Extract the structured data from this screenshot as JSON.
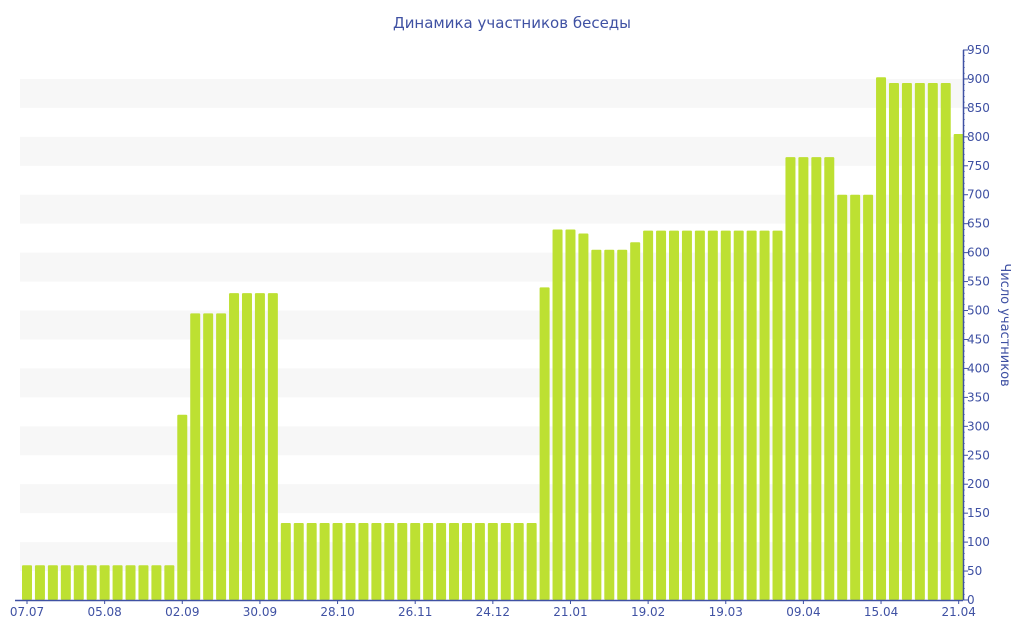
{
  "chart_data": {
    "type": "bar",
    "title": "Динамика участников беседы",
    "xlabel": "",
    "ylabel": "Число участников",
    "ylim": [
      0,
      950
    ],
    "yticks": [
      0,
      50,
      100,
      150,
      200,
      250,
      300,
      350,
      400,
      450,
      500,
      550,
      600,
      650,
      700,
      750,
      800,
      850,
      900,
      950
    ],
    "xtick_labels": [
      {
        "index": 0,
        "label": "07.07"
      },
      {
        "index": 6,
        "label": "05.08"
      },
      {
        "index": 12,
        "label": "02.09"
      },
      {
        "index": 18,
        "label": "30.09"
      },
      {
        "index": 24,
        "label": "28.10"
      },
      {
        "index": 30,
        "label": "26.11"
      },
      {
        "index": 36,
        "label": "24.12"
      },
      {
        "index": 42,
        "label": "21.01"
      },
      {
        "index": 48,
        "label": "19.02"
      },
      {
        "index": 54,
        "label": "19.03"
      },
      {
        "index": 60,
        "label": "09.04"
      },
      {
        "index": 66,
        "label": "15.04"
      },
      {
        "index": 72,
        "label": "21.04"
      }
    ],
    "values": [
      60,
      60,
      60,
      60,
      60,
      60,
      60,
      60,
      60,
      60,
      60,
      60,
      320,
      495,
      495,
      495,
      530,
      530,
      530,
      530,
      133,
      133,
      133,
      133,
      133,
      133,
      133,
      133,
      133,
      133,
      133,
      133,
      133,
      133,
      133,
      133,
      133,
      133,
      133,
      133,
      540,
      640,
      640,
      633,
      605,
      605,
      605,
      618,
      638,
      638,
      638,
      638,
      638,
      638,
      638,
      638,
      638,
      638,
      638,
      765,
      765,
      765,
      765,
      700,
      700,
      700,
      903,
      893,
      893,
      893,
      893,
      893,
      805
    ],
    "grid": "alternating horizontal bands",
    "colors": {
      "bar": "#bde032",
      "text": "#3f51a3",
      "band": "#f7f7f7"
    }
  }
}
